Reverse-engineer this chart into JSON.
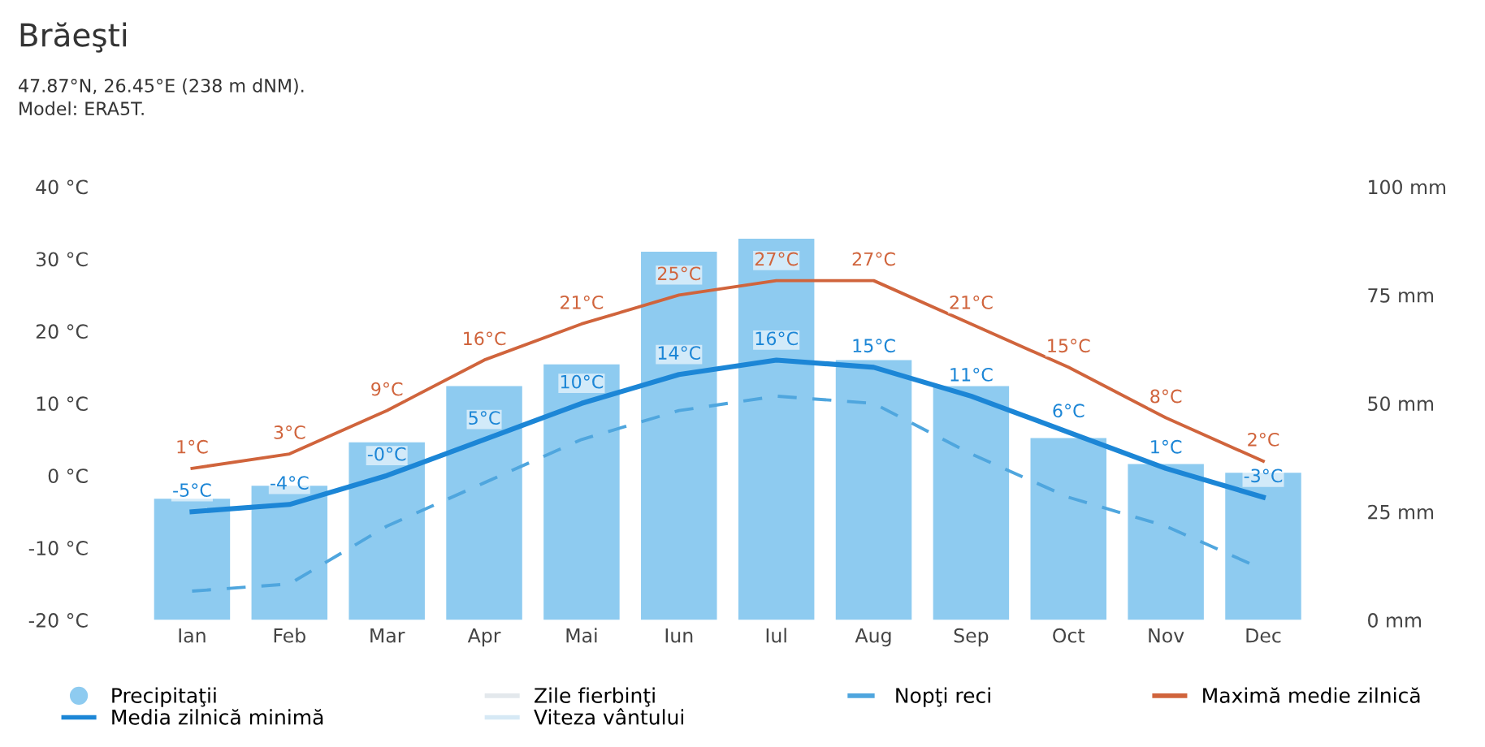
{
  "chart_data": {
    "type": "bar",
    "title": "Brăeşti",
    "subtitle": "47.87°N, 26.45°E (238 m dNM).\nModel: ERA5T.",
    "categories": [
      "Ian",
      "Feb",
      "Mar",
      "Apr",
      "Mai",
      "Iun",
      "Iul",
      "Aug",
      "Sep",
      "Oct",
      "Nov",
      "Dec"
    ],
    "series": [
      {
        "name": "Precipitaţii",
        "axis": "y2",
        "color": "#8ecbf0",
        "values": [
          28,
          31,
          41,
          54,
          59,
          85,
          88,
          60,
          54,
          42,
          36,
          34
        ]
      },
      {
        "name": "Media zilnică minimă",
        "type": "line",
        "color": "#1c86d6",
        "values": [
          -5,
          -4,
          0,
          5,
          10,
          14,
          16,
          15,
          11,
          6,
          1,
          -3
        ],
        "value_labels": [
          "-5°C",
          "-4°C",
          "-0°C",
          "5°C",
          "10°C",
          "14°C",
          "16°C",
          "15°C",
          "11°C",
          "6°C",
          "1°C",
          "-3°C"
        ]
      },
      {
        "name": "Zile fierbinţi",
        "type": "line",
        "color": "#e3e8ec",
        "values": [
          null,
          null,
          null,
          null,
          null,
          null,
          null,
          null,
          null,
          null,
          null,
          null
        ]
      },
      {
        "name": "Viteza vântului",
        "type": "line",
        "color": "#d6e9f5",
        "values": [
          null,
          null,
          null,
          null,
          null,
          null,
          null,
          null,
          null,
          null,
          null,
          null
        ]
      },
      {
        "name": "Nopţi reci",
        "type": "line",
        "line_style": "dashed",
        "color": "#4fa6de",
        "values": [
          -16,
          -15,
          -7,
          -1,
          5,
          9,
          11,
          10,
          3,
          -3,
          -7,
          -13
        ]
      },
      {
        "name": "Maximă medie zilnică",
        "type": "line",
        "color": "#d0643c",
        "values": [
          1,
          3,
          9,
          16,
          21,
          25,
          27,
          27,
          21,
          15,
          8,
          2
        ],
        "value_labels": [
          "1°C",
          "3°C",
          "9°C",
          "16°C",
          "21°C",
          "25°C",
          "27°C",
          "27°C",
          "21°C",
          "15°C",
          "8°C",
          "2°C"
        ]
      }
    ],
    "ylim": [
      -20,
      40
    ],
    "yticks": [
      {
        "value": -20,
        "label": "-20 °C"
      },
      {
        "value": -10,
        "label": "-10 °C"
      },
      {
        "value": 0,
        "label": "0 °C"
      },
      {
        "value": 10,
        "label": "10 °C"
      },
      {
        "value": 20,
        "label": "20 °C"
      },
      {
        "value": 30,
        "label": "30 °C"
      },
      {
        "value": 40,
        "label": "40 °C"
      }
    ],
    "y2lim": [
      0,
      100
    ],
    "y2ticks": [
      {
        "value": 0,
        "label": "0 mm"
      },
      {
        "value": 25,
        "label": "25 mm"
      },
      {
        "value": 50,
        "label": "50 mm"
      },
      {
        "value": 75,
        "label": "75 mm"
      },
      {
        "value": 100,
        "label": "100 mm"
      }
    ],
    "grid": false,
    "legend": "bottom"
  }
}
